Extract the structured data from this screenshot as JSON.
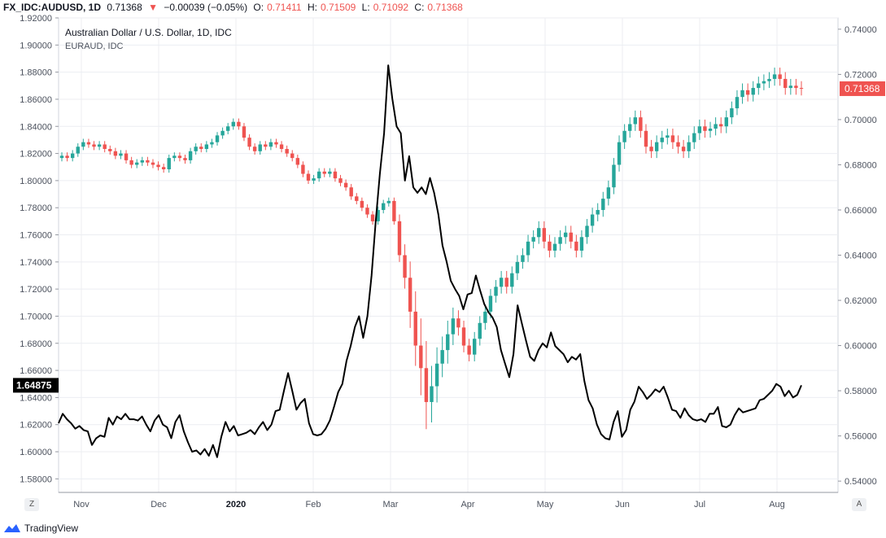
{
  "header": {
    "symbol": "FX_IDC:AUDUSD, 1D",
    "price": "0.71368",
    "arrow": "▼",
    "change": "−0.00039 (−0.05%)",
    "o_label": "O:",
    "o_val": "0.71411",
    "h_label": "H:",
    "h_val": "0.71509",
    "l_label": "L:",
    "l_val": "0.71092",
    "c_label": "C:",
    "c_val": "0.71368"
  },
  "colors": {
    "up": "#26a69a",
    "down": "#ef5350",
    "line": "#000000",
    "grid": "#e6e9ee",
    "last_price_bg": "#ef5350",
    "left_marker_bg": "#000000"
  },
  "footer": {
    "brand": "TradingView"
  },
  "buttons": {
    "left": "Z",
    "right": "A"
  },
  "chart_data": {
    "type": "line",
    "legend": [
      "Australian Dollar / U.S. Dollar, 1D, IDC",
      "EURAUD, IDC"
    ],
    "x_ticks": [
      "Nov",
      "Dec",
      "2020",
      "Feb",
      "Mar",
      "Apr",
      "May",
      "Jun",
      "Jul",
      "Aug"
    ],
    "left_axis": {
      "ylim": [
        1.57,
        1.92
      ],
      "ticks": [
        "1.92000",
        "1.90000",
        "1.88000",
        "1.86000",
        "1.84000",
        "1.82000",
        "1.80000",
        "1.78000",
        "1.76000",
        "1.74000",
        "1.72000",
        "1.70000",
        "1.68000",
        "1.66000",
        "1.64000",
        "1.62000",
        "1.60000",
        "1.58000"
      ]
    },
    "right_axis": {
      "ylim": [
        0.535,
        0.745
      ],
      "ticks": [
        "0.74000",
        "0.72000",
        "0.70000",
        "0.68000",
        "0.66000",
        "0.64000",
        "0.62000",
        "0.60000",
        "0.58000",
        "0.56000",
        "0.54000"
      ]
    },
    "last_price_label": "0.71368",
    "left_marker_label": "1.64875",
    "series": [
      {
        "name": "Australian Dollar / U.S. Dollar, 1D, IDC",
        "type": "candlestick",
        "axis": "right",
        "close": [
          0.684,
          0.683,
          0.685,
          0.688,
          0.69,
          0.689,
          0.688,
          0.689,
          0.687,
          0.686,
          0.684,
          0.685,
          0.682,
          0.68,
          0.681,
          0.682,
          0.681,
          0.68,
          0.679,
          0.678,
          0.683,
          0.684,
          0.683,
          0.682,
          0.686,
          0.688,
          0.687,
          0.689,
          0.69,
          0.693,
          0.695,
          0.697,
          0.699,
          0.697,
          0.692,
          0.688,
          0.686,
          0.689,
          0.688,
          0.69,
          0.689,
          0.687,
          0.685,
          0.683,
          0.68,
          0.676,
          0.673,
          0.674,
          0.677,
          0.676,
          0.677,
          0.674,
          0.672,
          0.67,
          0.666,
          0.664,
          0.661,
          0.658,
          0.655,
          0.66,
          0.663,
          0.664,
          0.655,
          0.64,
          0.63,
          0.615,
          0.6,
          0.59,
          0.575,
          0.582,
          0.592,
          0.598,
          0.605,
          0.612,
          0.608,
          0.6,
          0.596,
          0.603,
          0.61,
          0.615,
          0.622,
          0.626,
          0.63,
          0.626,
          0.632,
          0.637,
          0.64,
          0.646,
          0.648,
          0.652,
          0.646,
          0.642,
          0.645,
          0.648,
          0.65,
          0.646,
          0.642,
          0.648,
          0.653,
          0.658,
          0.66,
          0.665,
          0.67,
          0.68,
          0.69,
          0.695,
          0.698,
          0.701,
          0.695,
          0.688,
          0.686,
          0.69,
          0.692,
          0.693,
          0.69,
          0.688,
          0.686,
          0.69,
          0.694,
          0.697,
          0.695,
          0.696,
          0.698,
          0.697,
          0.701,
          0.705,
          0.71,
          0.713,
          0.711,
          0.714,
          0.716,
          0.717,
          0.718,
          0.72,
          0.718,
          0.714,
          0.715,
          0.714,
          0.71368
        ],
        "volatility": [
          0.0025,
          0.0025,
          0.0025,
          0.0025,
          0.0025,
          0.0025,
          0.0025,
          0.0025,
          0.0025,
          0.0025,
          0.0025,
          0.0025,
          0.0025,
          0.0025,
          0.0025,
          0.0025,
          0.0025,
          0.0025,
          0.0025,
          0.0025,
          0.0025,
          0.0025,
          0.0025,
          0.0025,
          0.0025,
          0.0025,
          0.0025,
          0.0025,
          0.0025,
          0.0025,
          0.0025,
          0.0025,
          0.0025,
          0.0025,
          0.0025,
          0.0025,
          0.0025,
          0.0025,
          0.0025,
          0.0025,
          0.0025,
          0.0025,
          0.0025,
          0.0025,
          0.0025,
          0.0025,
          0.0025,
          0.0025,
          0.0025,
          0.0025,
          0.0025,
          0.0025,
          0.0025,
          0.0025,
          0.0025,
          0.0025,
          0.0025,
          0.0025,
          0.0025,
          0.0025,
          0.0025,
          0.0025,
          0.0025,
          0.005,
          0.008,
          0.012,
          0.015,
          0.02,
          0.02,
          0.015,
          0.012,
          0.01,
          0.01,
          0.008,
          0.006,
          0.005,
          0.005,
          0.005,
          0.005,
          0.005,
          0.005,
          0.005,
          0.005,
          0.005,
          0.005,
          0.005,
          0.005,
          0.005,
          0.005,
          0.005,
          0.005,
          0.005,
          0.005,
          0.005,
          0.005,
          0.005,
          0.005,
          0.005,
          0.005,
          0.005,
          0.005,
          0.005,
          0.005,
          0.005,
          0.005,
          0.005,
          0.005,
          0.005,
          0.005,
          0.005,
          0.005,
          0.005,
          0.005,
          0.005,
          0.005,
          0.005,
          0.005,
          0.005,
          0.005,
          0.005,
          0.005,
          0.005,
          0.005,
          0.005,
          0.005,
          0.005,
          0.005,
          0.005,
          0.005,
          0.005,
          0.005,
          0.005,
          0.005,
          0.005,
          0.005,
          0.005,
          0.005,
          0.005,
          0.005
        ]
      },
      {
        "name": "EURAUD, IDC",
        "type": "line",
        "axis": "left",
        "values": [
          1.621,
          1.628,
          1.624,
          1.621,
          1.617,
          1.619,
          1.616,
          1.615,
          1.605,
          1.61,
          1.612,
          1.611,
          1.625,
          1.62,
          1.626,
          1.624,
          1.628,
          1.624,
          1.624,
          1.623,
          1.626,
          1.62,
          1.615,
          1.623,
          1.627,
          1.62,
          1.618,
          1.61,
          1.622,
          1.627,
          1.615,
          1.607,
          1.6,
          1.601,
          1.598,
          1.602,
          1.597,
          1.605,
          1.596,
          1.611,
          1.622,
          1.615,
          1.619,
          1.612,
          1.613,
          1.614,
          1.616,
          1.613,
          1.618,
          1.622,
          1.616,
          1.62,
          1.63,
          1.631,
          1.645,
          1.658,
          1.645,
          1.631,
          1.636,
          1.639,
          1.621,
          1.613,
          1.612,
          1.613,
          1.617,
          1.623,
          1.633,
          1.644,
          1.65,
          1.667,
          1.678,
          1.692,
          1.7,
          1.684,
          1.7,
          1.73,
          1.77,
          1.805,
          1.835,
          1.885,
          1.86,
          1.84,
          1.835,
          1.8,
          1.818,
          1.795,
          1.791,
          1.795,
          1.79,
          1.802,
          1.791,
          1.775,
          1.752,
          1.74,
          1.726,
          1.72,
          1.715,
          1.705,
          1.716,
          1.717,
          1.73,
          1.719,
          1.709,
          1.703,
          1.699,
          1.692,
          1.675,
          1.665,
          1.655,
          1.672,
          1.708,
          1.695,
          1.682,
          1.67,
          1.667,
          1.675,
          1.68,
          1.677,
          1.688,
          1.678,
          1.675,
          1.672,
          1.666,
          1.67,
          1.668,
          1.672,
          1.652,
          1.638,
          1.632,
          1.62,
          1.613,
          1.61,
          1.609,
          1.622,
          1.63,
          1.611,
          1.616,
          1.631,
          1.637,
          1.648,
          1.644,
          1.639,
          1.642,
          1.646,
          1.644,
          1.648,
          1.64,
          1.631,
          1.63,
          1.625,
          1.632,
          1.627,
          1.624,
          1.623,
          1.624,
          1.622,
          1.628,
          1.628,
          1.633,
          1.619,
          1.618,
          1.62,
          1.627,
          1.632,
          1.629,
          1.63,
          1.631,
          1.632,
          1.638,
          1.639,
          1.642,
          1.645,
          1.65,
          1.648,
          1.641,
          1.645,
          1.64,
          1.642,
          1.649
        ]
      }
    ]
  }
}
